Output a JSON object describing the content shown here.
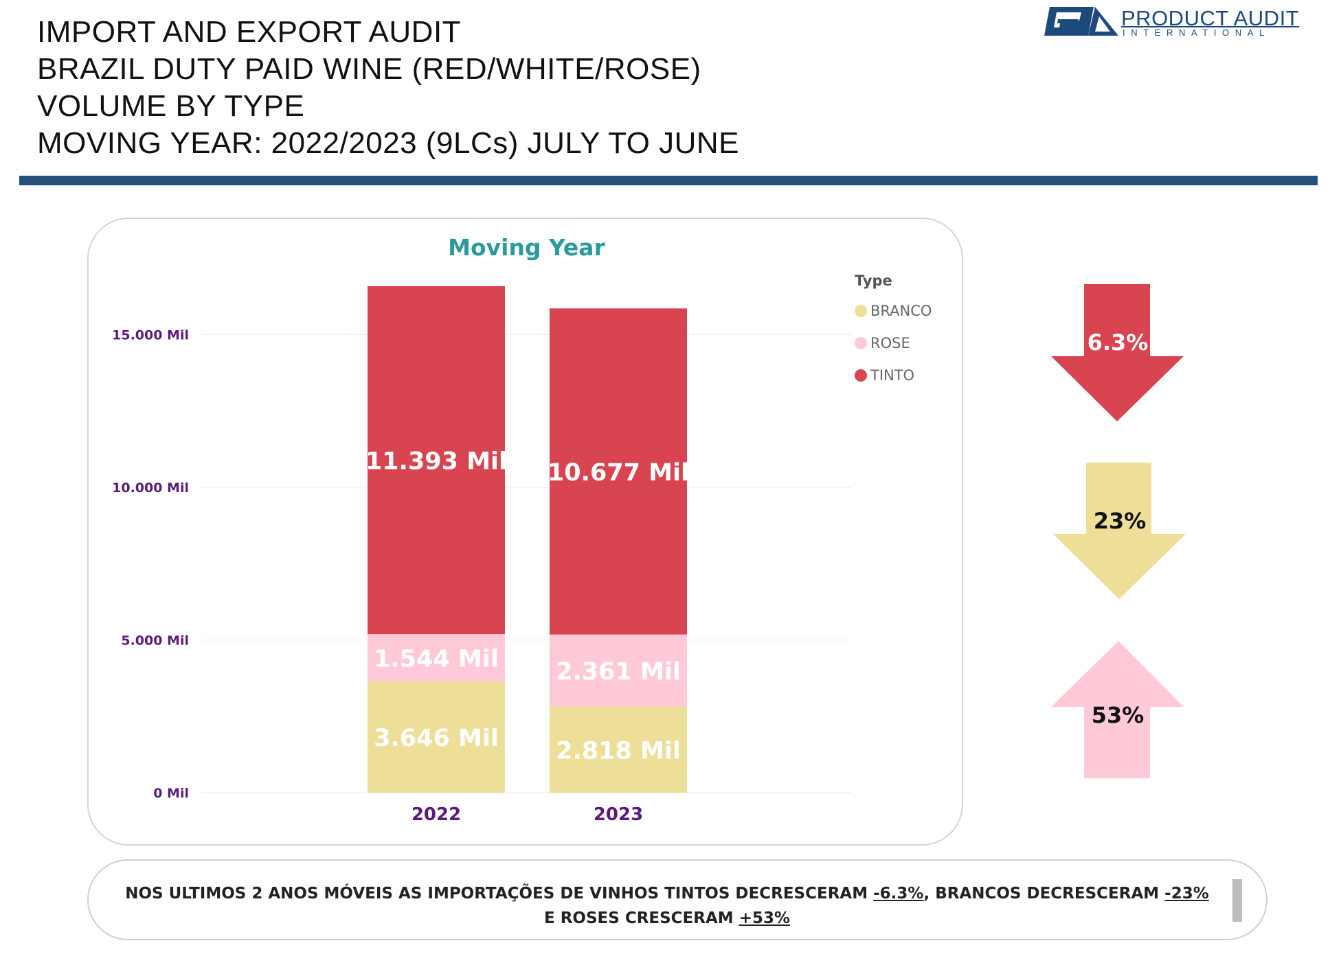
{
  "header": {
    "lines": [
      "IMPORT AND EXPORT AUDIT",
      "BRAZIL DUTY PAID WINE (RED/WHITE/ROSE)",
      "VOLUME BY TYPE",
      "MOVING YEAR: 2022/2023 (9LCs) JULY TO JUNE"
    ]
  },
  "logo": {
    "name": "PRODUCT AUDIT",
    "sub": "INTERNATIONAL",
    "brand_color": "#1d4a7c"
  },
  "colors": {
    "tinto": "#d84450",
    "rose": "#ffc9d8",
    "branco": "#eedf98",
    "title": "#2c9a9c",
    "axis": "#5b1a7e",
    "divider": "#24507a"
  },
  "chart_data": {
    "type": "bar",
    "stacked": true,
    "title": "Moving Year",
    "categories": [
      "2022",
      "2023"
    ],
    "series": [
      {
        "name": "BRANCO",
        "values": [
          3646,
          2818
        ],
        "labels": [
          "3.646 Mil",
          "2.818 Mil"
        ]
      },
      {
        "name": "ROSE",
        "values": [
          1544,
          2361
        ],
        "labels": [
          "1.544 Mil",
          "2.361 Mil"
        ]
      },
      {
        "name": "TINTO",
        "values": [
          11393,
          10677
        ],
        "labels": [
          "11.393 Mil",
          "10.677 Mil"
        ]
      }
    ],
    "y_ticks": [
      {
        "value": 0,
        "label": "0 Mil"
      },
      {
        "value": 5000,
        "label": "5.000 Mil"
      },
      {
        "value": 10000,
        "label": "10.000 Mil"
      },
      {
        "value": 15000,
        "label": "15.000 Mil"
      }
    ],
    "ylim": [
      0,
      16583
    ],
    "legend": {
      "title": "Type",
      "placement": "top-right"
    },
    "grid": true
  },
  "indicators": [
    {
      "type": "TINTO",
      "direction": "down",
      "text": "6.3%",
      "value": -6.3
    },
    {
      "type": "BRANCO",
      "direction": "down",
      "text": "23%",
      "value": -23
    },
    {
      "type": "ROSE",
      "direction": "up",
      "text": "53%",
      "value": 53
    }
  ],
  "note": {
    "part1": "NOS ULTIMOS 2 ANOS MÓVEIS AS IMPORTAÇÕES DE VINHOS TINTOS DECRESCERAM ",
    "tinto": "-6.3%",
    "part2": ", BRANCOS DECRESCERAM ",
    "branco": "-23%",
    "part3": "E ROSES CRESCERAM ",
    "rose": "+53%"
  }
}
